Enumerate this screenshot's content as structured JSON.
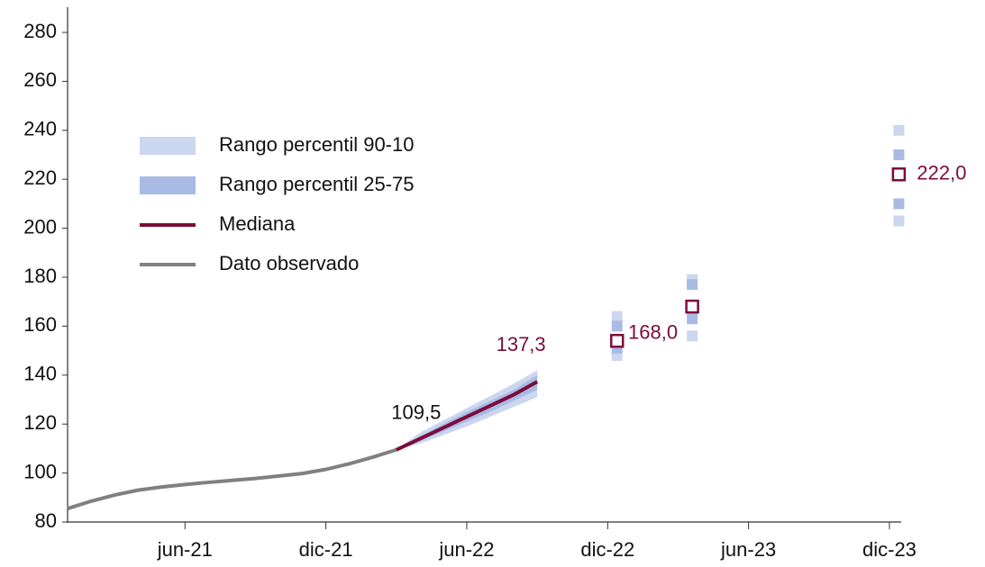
{
  "chart_data": {
    "type": "fan",
    "xlim": [
      1,
      36.5
    ],
    "xticks": [
      {
        "value": 6,
        "label": "jun-21"
      },
      {
        "value": 12,
        "label": "dic-21"
      },
      {
        "value": 18,
        "label": "jun-22"
      },
      {
        "value": 24,
        "label": "dic-22"
      },
      {
        "value": 30,
        "label": "jun-23"
      },
      {
        "value": 36,
        "label": "dic-23"
      }
    ],
    "ylim": [
      80,
      280
    ],
    "yticks": [
      80,
      100,
      120,
      140,
      160,
      180,
      200,
      220,
      240,
      260,
      280
    ],
    "bands": [
      {
        "name": "Rango percentil 90-10",
        "color": "#cbd6ef",
        "x": [
          15,
          16,
          17,
          18,
          19,
          20,
          21
        ],
        "low": [
          109.5,
          112,
          115.5,
          119,
          123,
          127,
          131
        ],
        "high": [
          109.5,
          116.5,
          121.5,
          126.5,
          131.5,
          136.5,
          142
        ]
      },
      {
        "name": "Rango percentil 25-75",
        "color": "#a9bbe5",
        "x": [
          15,
          16,
          17,
          18,
          19,
          20,
          21
        ],
        "low": [
          109.5,
          113,
          117,
          121,
          125,
          129.5,
          134
        ],
        "high": [
          109.5,
          115,
          120,
          125,
          129.5,
          134,
          140
        ]
      }
    ],
    "series": [
      {
        "name": "Mediana",
        "color": "#7b0c3c",
        "x": [
          15,
          16,
          17,
          18,
          19,
          20,
          21
        ],
        "values": [
          109.5,
          114,
          118.5,
          123,
          127.5,
          132,
          137.3
        ],
        "value_labels": [
          "109,5",
          null,
          null,
          null,
          null,
          null,
          "137,3"
        ]
      },
      {
        "name": "Dato observado",
        "color": "#808080",
        "x": [
          1,
          2,
          3,
          4,
          5,
          6,
          7,
          8,
          9,
          10,
          11,
          12,
          13,
          14,
          15
        ],
        "values": [
          85.5,
          88.5,
          91,
          93,
          94.3,
          95.3,
          96.2,
          97,
          97.8,
          98.8,
          99.8,
          101.5,
          103.8,
          106.5,
          109.5
        ]
      }
    ],
    "points": {
      "x": [
        24.4,
        27.6,
        36.4
      ],
      "median": [
        154,
        168,
        222
      ],
      "value_labels": [
        null,
        "168,0",
        "222,0"
      ],
      "p10": [
        148,
        156,
        203
      ],
      "p25": [
        151,
        163,
        210
      ],
      "p75": [
        160,
        177,
        230
      ],
      "p90": [
        164,
        179,
        240
      ]
    }
  }
}
